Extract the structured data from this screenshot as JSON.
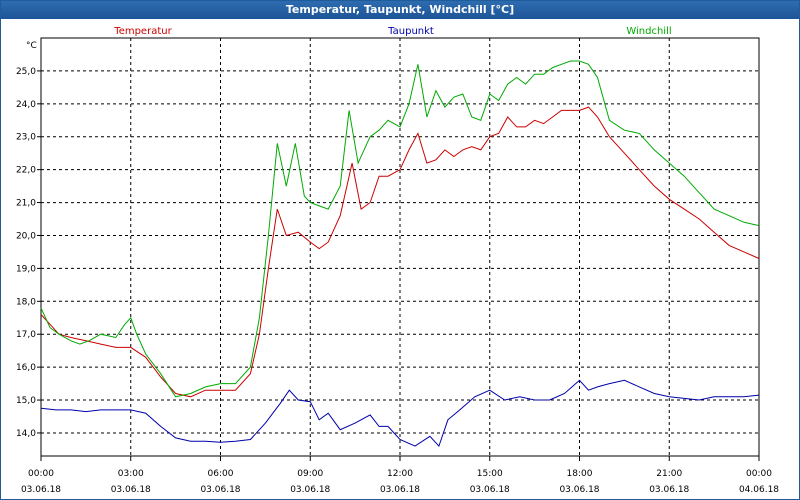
{
  "window": {
    "title": "Temperatur, Taupunkt, Windchill [°C]"
  },
  "chart_data": {
    "type": "line",
    "title": "Temperatur, Taupunkt, Windchill [°C]",
    "ylabel": "°C",
    "ylim": [
      13.3,
      26.0
    ],
    "xlim": [
      0,
      24
    ],
    "grid": true,
    "legend_position": "top",
    "y_ticks": [
      "14,0",
      "15,0",
      "16,0",
      "17,0",
      "18,0",
      "19,0",
      "20,0",
      "21,0",
      "22,0",
      "23,0",
      "24,0",
      "25,0"
    ],
    "y_tick_values": [
      14,
      15,
      16,
      17,
      18,
      19,
      20,
      21,
      22,
      23,
      24,
      25
    ],
    "x_tick_values": [
      0,
      3,
      6,
      9,
      12,
      15,
      18,
      21,
      24
    ],
    "x_tick_times": [
      "00:00",
      "03:00",
      "06:00",
      "09:00",
      "12:00",
      "15:00",
      "18:00",
      "21:00",
      "00:00"
    ],
    "x_tick_dates": [
      "03.06.18",
      "03.06.18",
      "03.06.18",
      "03.06.18",
      "03.06.18",
      "03.06.18",
      "03.06.18",
      "03.06.18",
      "04.06.18"
    ],
    "series": [
      {
        "name": "Temperatur",
        "color": "#cc0000",
        "x": [
          0,
          0.3,
          0.6,
          1,
          1.5,
          2,
          2.5,
          3,
          3.5,
          4,
          4.5,
          5,
          5.5,
          6,
          6.5,
          7,
          7.3,
          7.6,
          7.9,
          8.2,
          8.6,
          9,
          9.3,
          9.6,
          10,
          10.4,
          10.7,
          11,
          11.3,
          11.6,
          12,
          12.3,
          12.6,
          12.9,
          13.2,
          13.5,
          13.8,
          14.1,
          14.4,
          14.7,
          15,
          15.3,
          15.6,
          15.9,
          16.2,
          16.5,
          16.8,
          17.1,
          17.4,
          17.7,
          18,
          18.3,
          18.6,
          19,
          19.5,
          20,
          20.5,
          21,
          21.5,
          22,
          22.5,
          23,
          23.5,
          24
        ],
        "y": [
          17.6,
          17.3,
          17.0,
          16.9,
          16.8,
          16.7,
          16.6,
          16.6,
          16.3,
          15.7,
          15.2,
          15.1,
          15.3,
          15.3,
          15.3,
          15.8,
          17.0,
          19.0,
          20.8,
          20.0,
          20.1,
          19.8,
          19.6,
          19.8,
          20.6,
          22.2,
          20.8,
          21.0,
          21.8,
          21.8,
          22.0,
          22.6,
          23.1,
          22.2,
          22.3,
          22.6,
          22.4,
          22.6,
          22.7,
          22.6,
          23.0,
          23.1,
          23.6,
          23.3,
          23.3,
          23.5,
          23.4,
          23.6,
          23.8,
          23.8,
          23.8,
          23.9,
          23.6,
          23.0,
          22.5,
          22.0,
          21.5,
          21.1,
          20.8,
          20.5,
          20.1,
          19.7,
          19.5,
          19.3
        ]
      },
      {
        "name": "Taupunkt",
        "color": "#0000aa",
        "x": [
          0,
          0.5,
          1,
          1.5,
          2,
          2.5,
          3,
          3.5,
          4,
          4.5,
          5,
          5.5,
          6,
          6.5,
          7,
          7.5,
          8,
          8.3,
          8.6,
          9,
          9.3,
          9.6,
          10,
          10.5,
          11,
          11.3,
          11.6,
          12,
          12.5,
          13,
          13.3,
          13.6,
          14,
          14.5,
          15,
          15.5,
          16,
          16.5,
          17,
          17.5,
          18,
          18.3,
          18.6,
          19,
          19.5,
          20,
          20.5,
          21,
          21.5,
          22,
          22.5,
          23,
          23.5,
          24
        ],
        "y": [
          14.75,
          14.7,
          14.7,
          14.65,
          14.7,
          14.7,
          14.7,
          14.6,
          14.2,
          13.85,
          13.75,
          13.75,
          13.72,
          13.75,
          13.8,
          14.3,
          14.9,
          15.3,
          15.0,
          14.95,
          14.4,
          14.6,
          14.1,
          14.3,
          14.55,
          14.2,
          14.2,
          13.8,
          13.6,
          13.9,
          13.6,
          14.4,
          14.7,
          15.1,
          15.3,
          15.0,
          15.1,
          15.0,
          15.0,
          15.2,
          15.6,
          15.3,
          15.4,
          15.5,
          15.6,
          15.4,
          15.2,
          15.1,
          15.05,
          15.0,
          15.1,
          15.1,
          15.1,
          15.15
        ]
      },
      {
        "name": "Windchill",
        "color": "#00aa00",
        "x": [
          0,
          0.3,
          0.6,
          1,
          1.3,
          1.6,
          2,
          2.5,
          2.8,
          3,
          3.2,
          3.5,
          4,
          4.5,
          5,
          5.5,
          6,
          6.5,
          7,
          7.3,
          7.6,
          7.9,
          8.2,
          8.5,
          8.8,
          9,
          9.3,
          9.6,
          10,
          10.3,
          10.6,
          11,
          11.3,
          11.6,
          12,
          12.3,
          12.6,
          12.9,
          13.2,
          13.5,
          13.8,
          14.1,
          14.4,
          14.7,
          15,
          15.3,
          15.6,
          15.9,
          16.2,
          16.5,
          16.8,
          17.1,
          17.4,
          17.7,
          18,
          18.3,
          18.6,
          19,
          19.5,
          20,
          20.5,
          21,
          21.5,
          22,
          22.5,
          23,
          23.5,
          24
        ],
        "y": [
          17.8,
          17.2,
          17.0,
          16.8,
          16.7,
          16.8,
          17.0,
          16.9,
          17.3,
          17.5,
          17.0,
          16.4,
          15.8,
          15.1,
          15.2,
          15.4,
          15.5,
          15.5,
          16.0,
          17.5,
          20.0,
          22.8,
          21.5,
          22.8,
          21.2,
          21.0,
          20.9,
          20.8,
          21.5,
          23.8,
          22.2,
          23.0,
          23.2,
          23.5,
          23.3,
          24.0,
          25.2,
          23.6,
          24.4,
          23.9,
          24.2,
          24.3,
          23.6,
          23.5,
          24.3,
          24.1,
          24.6,
          24.8,
          24.6,
          24.9,
          24.9,
          25.1,
          25.2,
          25.3,
          25.3,
          25.2,
          24.8,
          23.5,
          23.2,
          23.1,
          22.6,
          22.2,
          21.8,
          21.3,
          20.8,
          20.6,
          20.4,
          20.3
        ]
      }
    ]
  }
}
